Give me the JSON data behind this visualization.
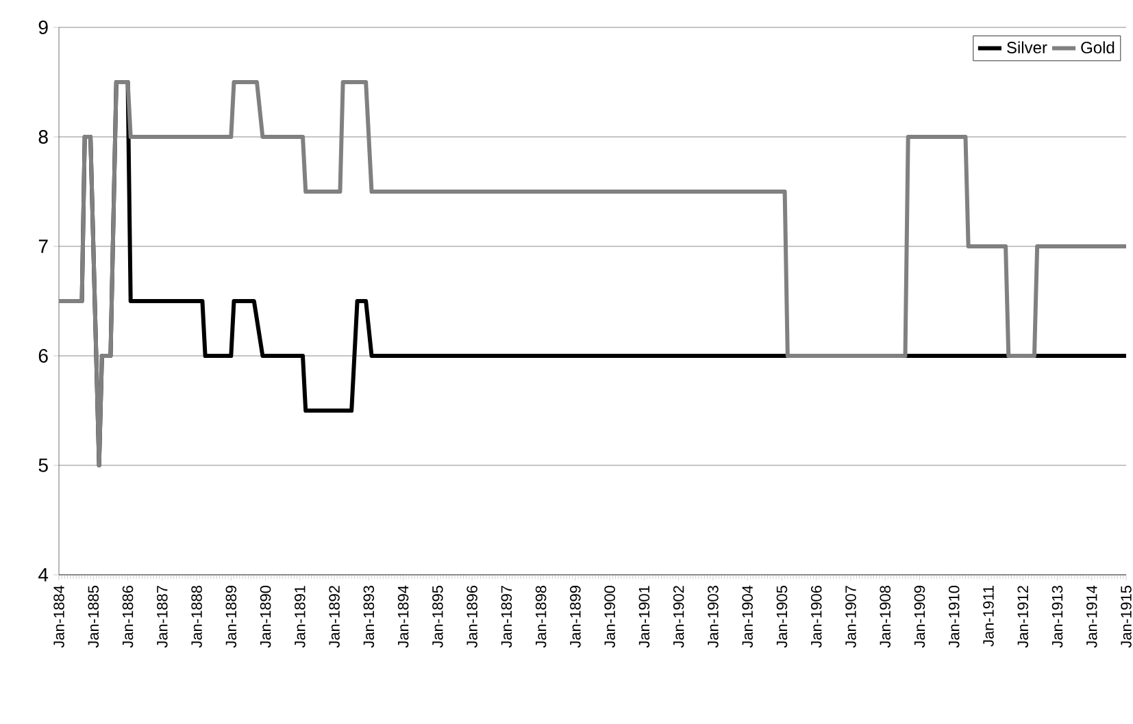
{
  "chart_data": {
    "type": "line",
    "xlim": [
      "1884-01",
      "1915-01"
    ],
    "ylim": [
      4,
      9
    ],
    "yticks": [
      4,
      5,
      6,
      7,
      8,
      9
    ],
    "xticks": [
      {
        "value": "1884-01",
        "label": "Jan-1884"
      },
      {
        "value": "1885-01",
        "label": "Jan-1885"
      },
      {
        "value": "1886-01",
        "label": "Jan-1886"
      },
      {
        "value": "1887-01",
        "label": "Jan-1887"
      },
      {
        "value": "1888-01",
        "label": "Jan-1888"
      },
      {
        "value": "1889-01",
        "label": "Jan-1889"
      },
      {
        "value": "1890-01",
        "label": "Jan-1890"
      },
      {
        "value": "1891-01",
        "label": "Jan-1891"
      },
      {
        "value": "1892-01",
        "label": "Jan-1892"
      },
      {
        "value": "1893-01",
        "label": "Jan-1893"
      },
      {
        "value": "1894-01",
        "label": "Jan-1894"
      },
      {
        "value": "1895-01",
        "label": "Jan-1895"
      },
      {
        "value": "1896-01",
        "label": "Jan-1896"
      },
      {
        "value": "1897-01",
        "label": "Jan-1897"
      },
      {
        "value": "1898-01",
        "label": "Jan-1898"
      },
      {
        "value": "1899-01",
        "label": "Jan-1899"
      },
      {
        "value": "1900-01",
        "label": "Jan-1900"
      },
      {
        "value": "1901-01",
        "label": "Jan-1901"
      },
      {
        "value": "1902-01",
        "label": "Jan-1902"
      },
      {
        "value": "1903-01",
        "label": "Jan-1903"
      },
      {
        "value": "1904-01",
        "label": "Jan-1904"
      },
      {
        "value": "1905-01",
        "label": "Jan-1905"
      },
      {
        "value": "1906-01",
        "label": "Jan-1906"
      },
      {
        "value": "1907-01",
        "label": "Jan-1907"
      },
      {
        "value": "1908-01",
        "label": "Jan-1908"
      },
      {
        "value": "1909-01",
        "label": "Jan-1909"
      },
      {
        "value": "1910-01",
        "label": "Jan-1910"
      },
      {
        "value": "1911-01",
        "label": "Jan-1911"
      },
      {
        "value": "1912-01",
        "label": "Jan-1912"
      },
      {
        "value": "1913-01",
        "label": "Jan-1913"
      },
      {
        "value": "1914-01",
        "label": "Jan-1914"
      },
      {
        "value": "1915-01",
        "label": "Jan-1915"
      }
    ],
    "grid": "y",
    "legend": "top right",
    "marker": "none",
    "line_style": "solid",
    "series": [
      {
        "name": "Silver",
        "color": "#000000",
        "x": [
          "1884-01",
          "1884-09",
          "1884-10",
          "1884-12",
          "1885-03",
          "1885-04",
          "1885-07",
          "1885-09",
          "1886-01",
          "1886-02",
          "1888-03",
          "1888-04",
          "1889-01",
          "1889-02",
          "1889-09",
          "1889-12",
          "1891-02",
          "1891-03",
          "1892-07",
          "1892-09",
          "1892-12",
          "1893-02",
          "1915-01"
        ],
        "values": [
          6.5,
          6.5,
          8,
          8,
          5,
          6,
          6,
          8.5,
          8.5,
          6.5,
          6.5,
          6,
          6,
          6.5,
          6.5,
          6,
          6,
          5.5,
          5.5,
          6.5,
          6.5,
          6,
          6
        ]
      },
      {
        "name": "Gold",
        "color": "#808080",
        "x": [
          "1884-01",
          "1884-09",
          "1884-10",
          "1884-12",
          "1885-03",
          "1885-04",
          "1885-07",
          "1885-09",
          "1886-01",
          "1886-02",
          "1889-01",
          "1889-02",
          "1889-10",
          "1889-12",
          "1891-02",
          "1891-03",
          "1892-03",
          "1892-04",
          "1892-12",
          "1893-02",
          "1905-02",
          "1905-03",
          "1908-08",
          "1908-09",
          "1910-05",
          "1910-06",
          "1911-07",
          "1911-08",
          "1912-05",
          "1912-06",
          "1915-01"
        ],
        "values": [
          6.5,
          6.5,
          8,
          8,
          5,
          6,
          6,
          8.5,
          8.5,
          8,
          8,
          8.5,
          8.5,
          8,
          8,
          7.5,
          7.5,
          8.5,
          8.5,
          7.5,
          7.5,
          6,
          6,
          8,
          8,
          7,
          7,
          6,
          6,
          7,
          7
        ]
      }
    ]
  }
}
